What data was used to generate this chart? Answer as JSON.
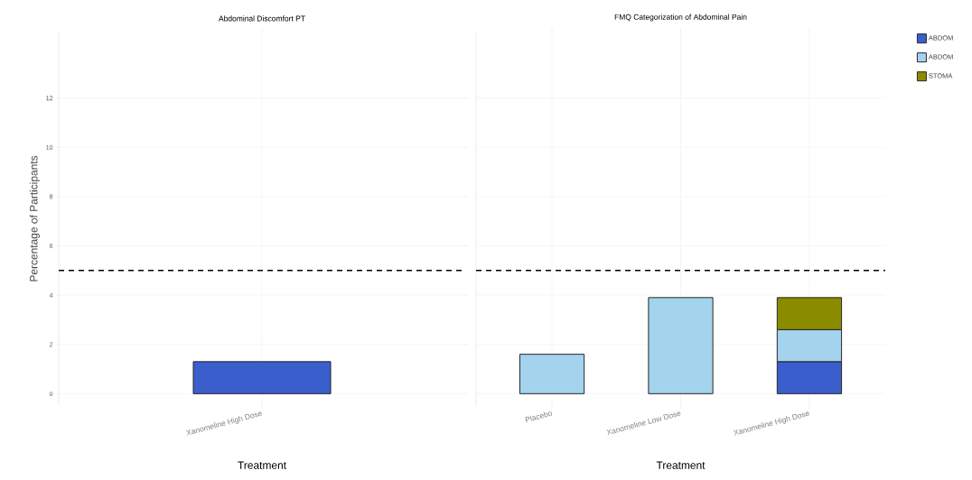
{
  "chart_data": [
    {
      "type": "bar",
      "title": "Abdominal Discomfort PT",
      "xlabel": "Treatment",
      "ylabel": "Percentage of Participants",
      "categories": [
        "Xanomeline High Dose"
      ],
      "series": [
        {
          "color": "#3a5fcd",
          "values": [
            1.3
          ]
        }
      ],
      "ylim": [
        -0.5,
        14.7
      ],
      "yticks": [
        0,
        2,
        4,
        6,
        8,
        10,
        12
      ],
      "grid": true,
      "ref_lines": [
        {
          "axis": "y",
          "value": 5,
          "color": "#000000",
          "line_style": "dashed"
        }
      ]
    },
    {
      "type": "bar",
      "title": "FMQ Categorization of Abdominal Pain",
      "xlabel": "Treatment",
      "categories": [
        "Placebo",
        "Xanomeline Low Dose",
        "Xanomeline High Dose"
      ],
      "stacked": true,
      "series": [
        {
          "name": "ABDOM",
          "color": "#3a5fcd",
          "values": [
            null,
            null,
            1.3
          ]
        },
        {
          "name": "ABDOM",
          "color": "#a4d3ee",
          "values": [
            1.6,
            3.9,
            1.3
          ]
        },
        {
          "name": "STOMA",
          "color": "#8b8b00",
          "values": [
            null,
            null,
            1.3
          ]
        }
      ],
      "ylim": [
        -0.5,
        14.7
      ],
      "yticks": [
        0,
        2,
        4,
        6,
        8,
        10,
        12
      ],
      "grid": true,
      "legend": "top right",
      "tick_labels": "x",
      "ref_lines": [
        {
          "axis": "y",
          "value": 5,
          "color": "#000000",
          "line_style": "dashed"
        }
      ]
    }
  ]
}
